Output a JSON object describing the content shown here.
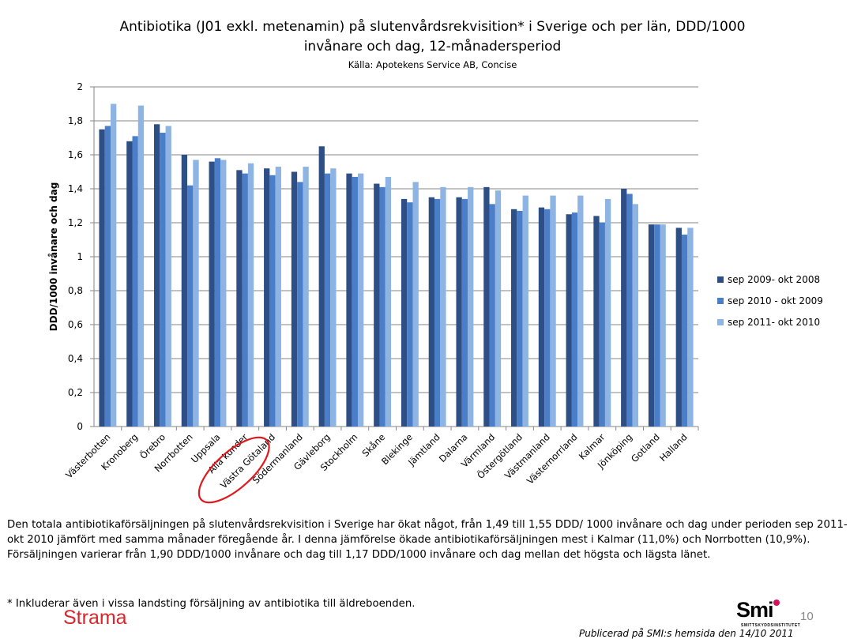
{
  "header": {
    "title_line1": "Antibiotika (J01 exkl. metenamin) på slutenvårdsrekvisition* i Sverige och per län, DDD/1000",
    "title_line2": "invånare och dag, 12-månadersperiod",
    "source": "Källa: Apotekens Service AB, Concise"
  },
  "chart_data": {
    "type": "bar",
    "ylabel": "DDD/1000 invånare och dag",
    "ylim": [
      0,
      2
    ],
    "yticks": [
      "0",
      "0,2",
      "0,4",
      "0,6",
      "0,8",
      "1",
      "1,2",
      "1,4",
      "1,6",
      "1,8",
      "2"
    ],
    "grid": true,
    "legend_position": "right",
    "categories": [
      "Västerbotten",
      "Kronoberg",
      "Örebro",
      "Norrbotten",
      "Uppsala",
      "Alla kunder",
      "Västra Götaland",
      "Södermanland",
      "Gävleborg",
      "Stockholm",
      "Skåne",
      "Blekinge",
      "Jämtland",
      "Dalarna",
      "Värmland",
      "Östergötland",
      "Västmanland",
      "Västernorrland",
      "Kalmar",
      "Jönköping",
      "Gotland",
      "Halland"
    ],
    "series": [
      {
        "name": "sep 2009- okt 2008",
        "color": "#2e4e86",
        "values": [
          1.75,
          1.68,
          1.78,
          1.6,
          1.56,
          1.51,
          1.52,
          1.5,
          1.65,
          1.49,
          1.43,
          1.34,
          1.35,
          1.35,
          1.41,
          1.28,
          1.29,
          1.25,
          1.24,
          1.4,
          1.19,
          1.17
        ]
      },
      {
        "name": "sep 2010 - okt 2009",
        "color": "#4a7ec8",
        "values": [
          1.77,
          1.71,
          1.73,
          1.42,
          1.58,
          1.49,
          1.48,
          1.44,
          1.49,
          1.47,
          1.41,
          1.32,
          1.34,
          1.34,
          1.31,
          1.27,
          1.28,
          1.26,
          1.2,
          1.37,
          1.19,
          1.13
        ]
      },
      {
        "name": "sep 2011- okt 2010",
        "color": "#8db4e2",
        "values": [
          1.9,
          1.89,
          1.77,
          1.57,
          1.57,
          1.55,
          1.53,
          1.53,
          1.52,
          1.49,
          1.47,
          1.44,
          1.41,
          1.41,
          1.39,
          1.36,
          1.36,
          1.36,
          1.34,
          1.31,
          1.19,
          1.17
        ]
      }
    ]
  },
  "body": {
    "paragraph1": "Den totala antibiotikaförsäljningen på slutenvårdsrekvisition i Sverige har ökat något, från 1,49 till 1,55 DDD/ 1000 invånare och dag under perioden sep 2011- okt 2010 jämfört med samma månader föregående år. I denna jämförelse ökade antibiotikaförsäljningen mest i Kalmar (11,0%) och Norrbotten (10,9%).",
    "paragraph2": "Försäljningen varierar från 1,90 DDD/1000 invånare och dag till 1,17 DDD/1000 invånare och dag mellan det högsta och lägsta länet.",
    "footnote": "* Inkluderar även i vissa landsting försäljning av antibiotika till äldreboenden."
  },
  "footer": {
    "strama_logo": "Strama",
    "smi_logo": "Smi",
    "smi_subtitle": "SMITTSKYDDSINSTITUTET",
    "page_number": "10",
    "published": "Publicerad på SMI:s hemsida den 14/10 2011"
  },
  "annotation": {
    "shape": "red-ellipse",
    "target": "Alla kunder",
    "color": "#e0191e"
  }
}
